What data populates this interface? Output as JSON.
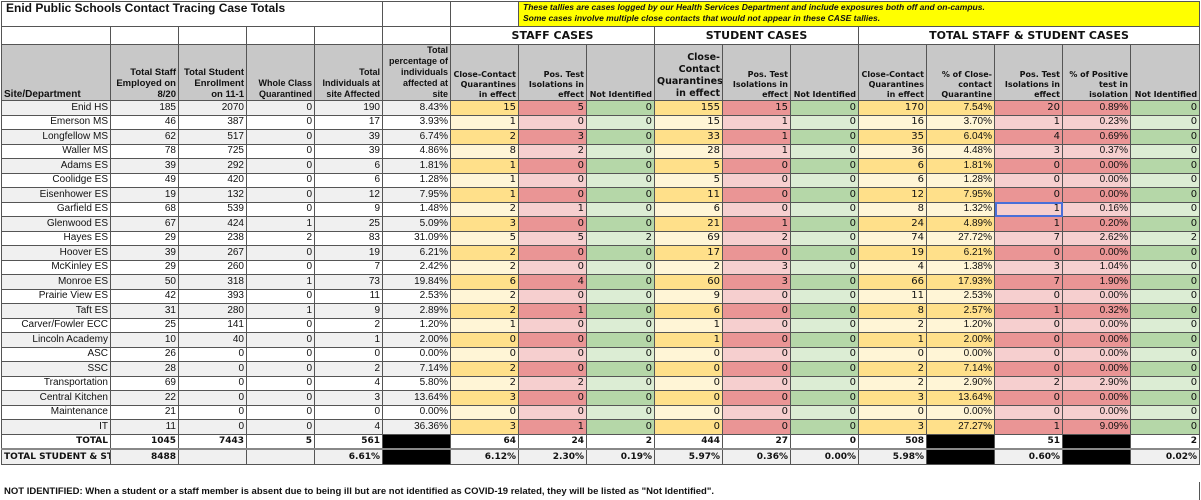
{
  "title": "Enid Public Schools Contact Tracing Case Totals",
  "note": {
    "line1": "These tallies are cases logged by our Health Services Department and include exposures both off and on-campus.",
    "line2": "Some cases involve multiple close contacts that would not appear in these CASE tallies."
  },
  "group_headers": {
    "staff": "STAFF CASES",
    "student": "STUDENT CASES",
    "total": "TOTAL STAFF & STUDENT CASES"
  },
  "columns": [
    "Site/Department",
    "Total Staff Employed on 8/20",
    "Total Student Enrollment on 11-1",
    "Whole Class Quarantined",
    "Total Individuals at site Affected",
    "Total percentage of individuals affected at site",
    "Close-Contact Quarantines in effect",
    "Pos. Test Isolations in effect",
    "Not Identified",
    "Close-Contact Quarantines in effect",
    "Pos. Test Isolations in effect",
    "Not Identified",
    "Close-Contact Quarantines in effect",
    "% of Close-contact Quarantine",
    "Pos. Test Isolations in effect",
    "% of Positive test in isolation",
    "Not Identified"
  ],
  "rows": [
    {
      "site": "Enid HS",
      "staff": "185",
      "students": "2070",
      "whole_class": "0",
      "affected": "190",
      "pct": "8.43%",
      "st_ccq": "15",
      "st_pos": "5",
      "st_ni": "0",
      "su_ccq": "155",
      "su_pos": "15",
      "su_ni": "0",
      "t_ccq": "170",
      "t_ccq_pct": "7.54%",
      "t_pos": "20",
      "t_pos_pct": "0.89%",
      "t_ni": "0"
    },
    {
      "site": "Emerson MS",
      "staff": "46",
      "students": "387",
      "whole_class": "0",
      "affected": "17",
      "pct": "3.93%",
      "st_ccq": "1",
      "st_pos": "0",
      "st_ni": "0",
      "su_ccq": "15",
      "su_pos": "1",
      "su_ni": "0",
      "t_ccq": "16",
      "t_ccq_pct": "3.70%",
      "t_pos": "1",
      "t_pos_pct": "0.23%",
      "t_ni": "0"
    },
    {
      "site": "Longfellow MS",
      "staff": "62",
      "students": "517",
      "whole_class": "0",
      "affected": "39",
      "pct": "6.74%",
      "st_ccq": "2",
      "st_pos": "3",
      "st_ni": "0",
      "su_ccq": "33",
      "su_pos": "1",
      "su_ni": "0",
      "t_ccq": "35",
      "t_ccq_pct": "6.04%",
      "t_pos": "4",
      "t_pos_pct": "0.69%",
      "t_ni": "0"
    },
    {
      "site": "Waller MS",
      "staff": "78",
      "students": "725",
      "whole_class": "0",
      "affected": "39",
      "pct": "4.86%",
      "st_ccq": "8",
      "st_pos": "2",
      "st_ni": "0",
      "su_ccq": "28",
      "su_pos": "1",
      "su_ni": "0",
      "t_ccq": "36",
      "t_ccq_pct": "4.48%",
      "t_pos": "3",
      "t_pos_pct": "0.37%",
      "t_ni": "0"
    },
    {
      "site": "Adams ES",
      "staff": "39",
      "students": "292",
      "whole_class": "0",
      "affected": "6",
      "pct": "1.81%",
      "st_ccq": "1",
      "st_pos": "0",
      "st_ni": "0",
      "su_ccq": "5",
      "su_pos": "0",
      "su_ni": "0",
      "t_ccq": "6",
      "t_ccq_pct": "1.81%",
      "t_pos": "0",
      "t_pos_pct": "0.00%",
      "t_ni": "0"
    },
    {
      "site": "Coolidge ES",
      "staff": "49",
      "students": "420",
      "whole_class": "0",
      "affected": "6",
      "pct": "1.28%",
      "st_ccq": "1",
      "st_pos": "0",
      "st_ni": "0",
      "su_ccq": "5",
      "su_pos": "0",
      "su_ni": "0",
      "t_ccq": "6",
      "t_ccq_pct": "1.28%",
      "t_pos": "0",
      "t_pos_pct": "0.00%",
      "t_ni": "0"
    },
    {
      "site": "Eisenhower ES",
      "staff": "19",
      "students": "132",
      "whole_class": "0",
      "affected": "12",
      "pct": "7.95%",
      "st_ccq": "1",
      "st_pos": "0",
      "st_ni": "0",
      "su_ccq": "11",
      "su_pos": "0",
      "su_ni": "0",
      "t_ccq": "12",
      "t_ccq_pct": "7.95%",
      "t_pos": "0",
      "t_pos_pct": "0.00%",
      "t_ni": "0"
    },
    {
      "site": "Garfield ES",
      "staff": "68",
      "students": "539",
      "whole_class": "0",
      "affected": "9",
      "pct": "1.48%",
      "st_ccq": "2",
      "st_pos": "1",
      "st_ni": "0",
      "su_ccq": "6",
      "su_pos": "0",
      "su_ni": "0",
      "t_ccq": "8",
      "t_ccq_pct": "1.32%",
      "t_pos": "1",
      "t_pos_pct": "0.16%",
      "t_ni": "0"
    },
    {
      "site": "Glenwood ES",
      "staff": "67",
      "students": "424",
      "whole_class": "1",
      "affected": "25",
      "pct": "5.09%",
      "st_ccq": "3",
      "st_pos": "0",
      "st_ni": "0",
      "su_ccq": "21",
      "su_pos": "1",
      "su_ni": "0",
      "t_ccq": "24",
      "t_ccq_pct": "4.89%",
      "t_pos": "1",
      "t_pos_pct": "0.20%",
      "t_ni": "0"
    },
    {
      "site": "Hayes ES",
      "staff": "29",
      "students": "238",
      "whole_class": "2",
      "affected": "83",
      "pct": "31.09%",
      "st_ccq": "5",
      "st_pos": "5",
      "st_ni": "2",
      "su_ccq": "69",
      "su_pos": "2",
      "su_ni": "0",
      "t_ccq": "74",
      "t_ccq_pct": "27.72%",
      "t_pos": "7",
      "t_pos_pct": "2.62%",
      "t_ni": "2"
    },
    {
      "site": "Hoover ES",
      "staff": "39",
      "students": "267",
      "whole_class": "0",
      "affected": "19",
      "pct": "6.21%",
      "st_ccq": "2",
      "st_pos": "0",
      "st_ni": "0",
      "su_ccq": "17",
      "su_pos": "0",
      "su_ni": "0",
      "t_ccq": "19",
      "t_ccq_pct": "6.21%",
      "t_pos": "0",
      "t_pos_pct": "0.00%",
      "t_ni": "0"
    },
    {
      "site": "McKinley ES",
      "staff": "29",
      "students": "260",
      "whole_class": "0",
      "affected": "7",
      "pct": "2.42%",
      "st_ccq": "2",
      "st_pos": "0",
      "st_ni": "0",
      "su_ccq": "2",
      "su_pos": "3",
      "su_ni": "0",
      "t_ccq": "4",
      "t_ccq_pct": "1.38%",
      "t_pos": "3",
      "t_pos_pct": "1.04%",
      "t_ni": "0"
    },
    {
      "site": "Monroe ES",
      "staff": "50",
      "students": "318",
      "whole_class": "1",
      "affected": "73",
      "pct": "19.84%",
      "st_ccq": "6",
      "st_pos": "4",
      "st_ni": "0",
      "su_ccq": "60",
      "su_pos": "3",
      "su_ni": "0",
      "t_ccq": "66",
      "t_ccq_pct": "17.93%",
      "t_pos": "7",
      "t_pos_pct": "1.90%",
      "t_ni": "0"
    },
    {
      "site": "Prairie View ES",
      "staff": "42",
      "students": "393",
      "whole_class": "0",
      "affected": "11",
      "pct": "2.53%",
      "st_ccq": "2",
      "st_pos": "0",
      "st_ni": "0",
      "su_ccq": "9",
      "su_pos": "0",
      "su_ni": "0",
      "t_ccq": "11",
      "t_ccq_pct": "2.53%",
      "t_pos": "0",
      "t_pos_pct": "0.00%",
      "t_ni": "0"
    },
    {
      "site": "Taft ES",
      "staff": "31",
      "students": "280",
      "whole_class": "1",
      "affected": "9",
      "pct": "2.89%",
      "st_ccq": "2",
      "st_pos": "1",
      "st_ni": "0",
      "su_ccq": "6",
      "su_pos": "0",
      "su_ni": "0",
      "t_ccq": "8",
      "t_ccq_pct": "2.57%",
      "t_pos": "1",
      "t_pos_pct": "0.32%",
      "t_ni": "0"
    },
    {
      "site": "Carver/Fowler ECC",
      "staff": "25",
      "students": "141",
      "whole_class": "0",
      "affected": "2",
      "pct": "1.20%",
      "st_ccq": "1",
      "st_pos": "0",
      "st_ni": "0",
      "su_ccq": "1",
      "su_pos": "0",
      "su_ni": "0",
      "t_ccq": "2",
      "t_ccq_pct": "1.20%",
      "t_pos": "0",
      "t_pos_pct": "0.00%",
      "t_ni": "0"
    },
    {
      "site": "Lincoln Academy",
      "staff": "10",
      "students": "40",
      "whole_class": "0",
      "affected": "1",
      "pct": "2.00%",
      "st_ccq": "0",
      "st_pos": "0",
      "st_ni": "0",
      "su_ccq": "1",
      "su_pos": "0",
      "su_ni": "0",
      "t_ccq": "1",
      "t_ccq_pct": "2.00%",
      "t_pos": "0",
      "t_pos_pct": "0.00%",
      "t_ni": "0"
    },
    {
      "site": "ASC",
      "staff": "26",
      "students": "0",
      "whole_class": "0",
      "affected": "0",
      "pct": "0.00%",
      "st_ccq": "0",
      "st_pos": "0",
      "st_ni": "0",
      "su_ccq": "0",
      "su_pos": "0",
      "su_ni": "0",
      "t_ccq": "0",
      "t_ccq_pct": "0.00%",
      "t_pos": "0",
      "t_pos_pct": "0.00%",
      "t_ni": "0"
    },
    {
      "site": "SSC",
      "staff": "28",
      "students": "0",
      "whole_class": "0",
      "affected": "2",
      "pct": "7.14%",
      "st_ccq": "2",
      "st_pos": "0",
      "st_ni": "0",
      "su_ccq": "0",
      "su_pos": "0",
      "su_ni": "0",
      "t_ccq": "2",
      "t_ccq_pct": "7.14%",
      "t_pos": "0",
      "t_pos_pct": "0.00%",
      "t_ni": "0"
    },
    {
      "site": "Transportation",
      "staff": "69",
      "students": "0",
      "whole_class": "0",
      "affected": "4",
      "pct": "5.80%",
      "st_ccq": "2",
      "st_pos": "2",
      "st_ni": "0",
      "su_ccq": "0",
      "su_pos": "0",
      "su_ni": "0",
      "t_ccq": "2",
      "t_ccq_pct": "2.90%",
      "t_pos": "2",
      "t_pos_pct": "2.90%",
      "t_ni": "0"
    },
    {
      "site": "Central Kitchen",
      "staff": "22",
      "students": "0",
      "whole_class": "0",
      "affected": "3",
      "pct": "13.64%",
      "st_ccq": "3",
      "st_pos": "0",
      "st_ni": "0",
      "su_ccq": "0",
      "su_pos": "0",
      "su_ni": "0",
      "t_ccq": "3",
      "t_ccq_pct": "13.64%",
      "t_pos": "0",
      "t_pos_pct": "0.00%",
      "t_ni": "0"
    },
    {
      "site": "Maintenance",
      "staff": "21",
      "students": "0",
      "whole_class": "0",
      "affected": "0",
      "pct": "0.00%",
      "st_ccq": "0",
      "st_pos": "0",
      "st_ni": "0",
      "su_ccq": "0",
      "su_pos": "0",
      "su_ni": "0",
      "t_ccq": "0",
      "t_ccq_pct": "0.00%",
      "t_pos": "0",
      "t_pos_pct": "0.00%",
      "t_ni": "0"
    },
    {
      "site": "IT",
      "staff": "11",
      "students": "0",
      "whole_class": "0",
      "affected": "4",
      "pct": "36.36%",
      "st_ccq": "3",
      "st_pos": "1",
      "st_ni": "0",
      "su_ccq": "0",
      "su_pos": "0",
      "su_ni": "0",
      "t_ccq": "3",
      "t_ccq_pct": "27.27%",
      "t_pos": "1",
      "t_pos_pct": "9.09%",
      "t_ni": "0"
    }
  ],
  "total": {
    "label": "TOTAL",
    "staff": "1045",
    "students": "7443",
    "whole_class": "5",
    "affected": "561",
    "st_ccq": "64",
    "st_pos": "24",
    "st_ni": "2",
    "su_ccq": "444",
    "su_pos": "27",
    "su_ni": "0",
    "t_ccq": "508",
    "t_pos": "51",
    "t_ni": "2"
  },
  "grand_total": {
    "label": "TOTAL STUDENT & STAFF",
    "combined": "8488",
    "pct": "6.61%",
    "st_ccq": "6.12%",
    "st_pos": "2.30%",
    "st_ni": "0.19%",
    "su_ccq": "5.97%",
    "su_pos": "0.36%",
    "su_ni": "0.00%",
    "t_ccq": "5.98%",
    "t_pos": "0.60%",
    "t_ni": "0.02%"
  },
  "footnote": "NOT IDENTIFIED: When a student or a staff member is absent due to being ill but are not identified as COVID-19 related, they will be listed as \"Not Identified\".",
  "colors": {
    "header_gray": "#c8c8c8",
    "note_yellow": "#ffff00",
    "yellow_dark": "#ffe08a",
    "yellow_light": "#fff5d6",
    "red_dark": "#ea9595",
    "red_light": "#f6cfcf",
    "green_dark": "#b5d7a8",
    "green_light": "#dcedd4",
    "grand_total_blue": "#c5d4f0",
    "selection_blue": "#4a6fd8"
  }
}
